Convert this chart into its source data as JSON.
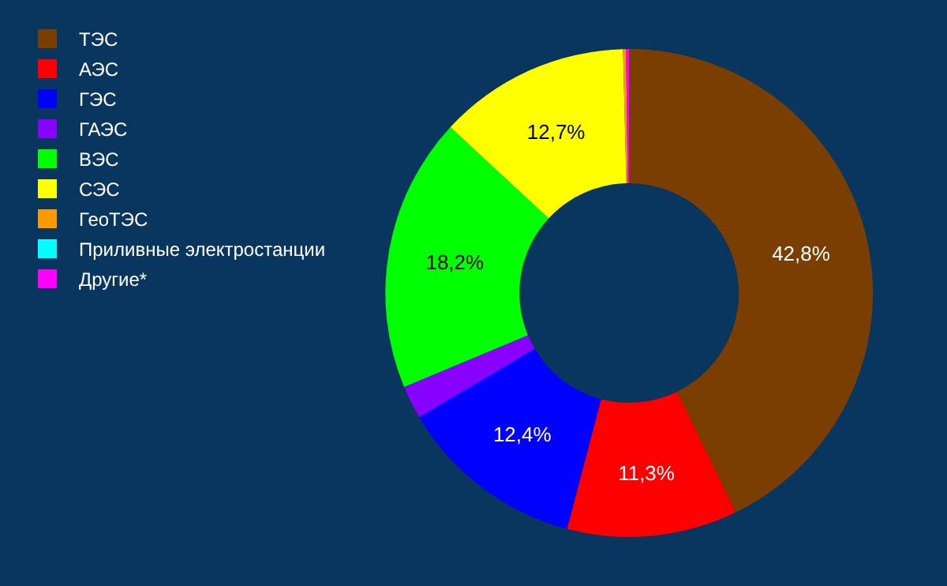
{
  "chart_data": {
    "type": "donut",
    "categories": [
      "ТЭС",
      "АЭС",
      "ГЭС",
      "ГАЭС",
      "ВЭС",
      "СЭС",
      "ГеоТЭС",
      "Приливные электростанции",
      "Другие*"
    ],
    "values": [
      42.8,
      11.3,
      12.4,
      2.2,
      18.2,
      12.7,
      0.2,
      0.0,
      0.2
    ],
    "colors": [
      "#7a3f00",
      "#ff0000",
      "#0000ff",
      "#8800ff",
      "#00ff00",
      "#ffff00",
      "#ff9900",
      "#00ffff",
      "#ff00ff"
    ],
    "value_labels": [
      "42,8%",
      "11,3%",
      "12,4%",
      null,
      "18,2%",
      "12,7%",
      null,
      null,
      null
    ],
    "legend": "top left"
  }
}
